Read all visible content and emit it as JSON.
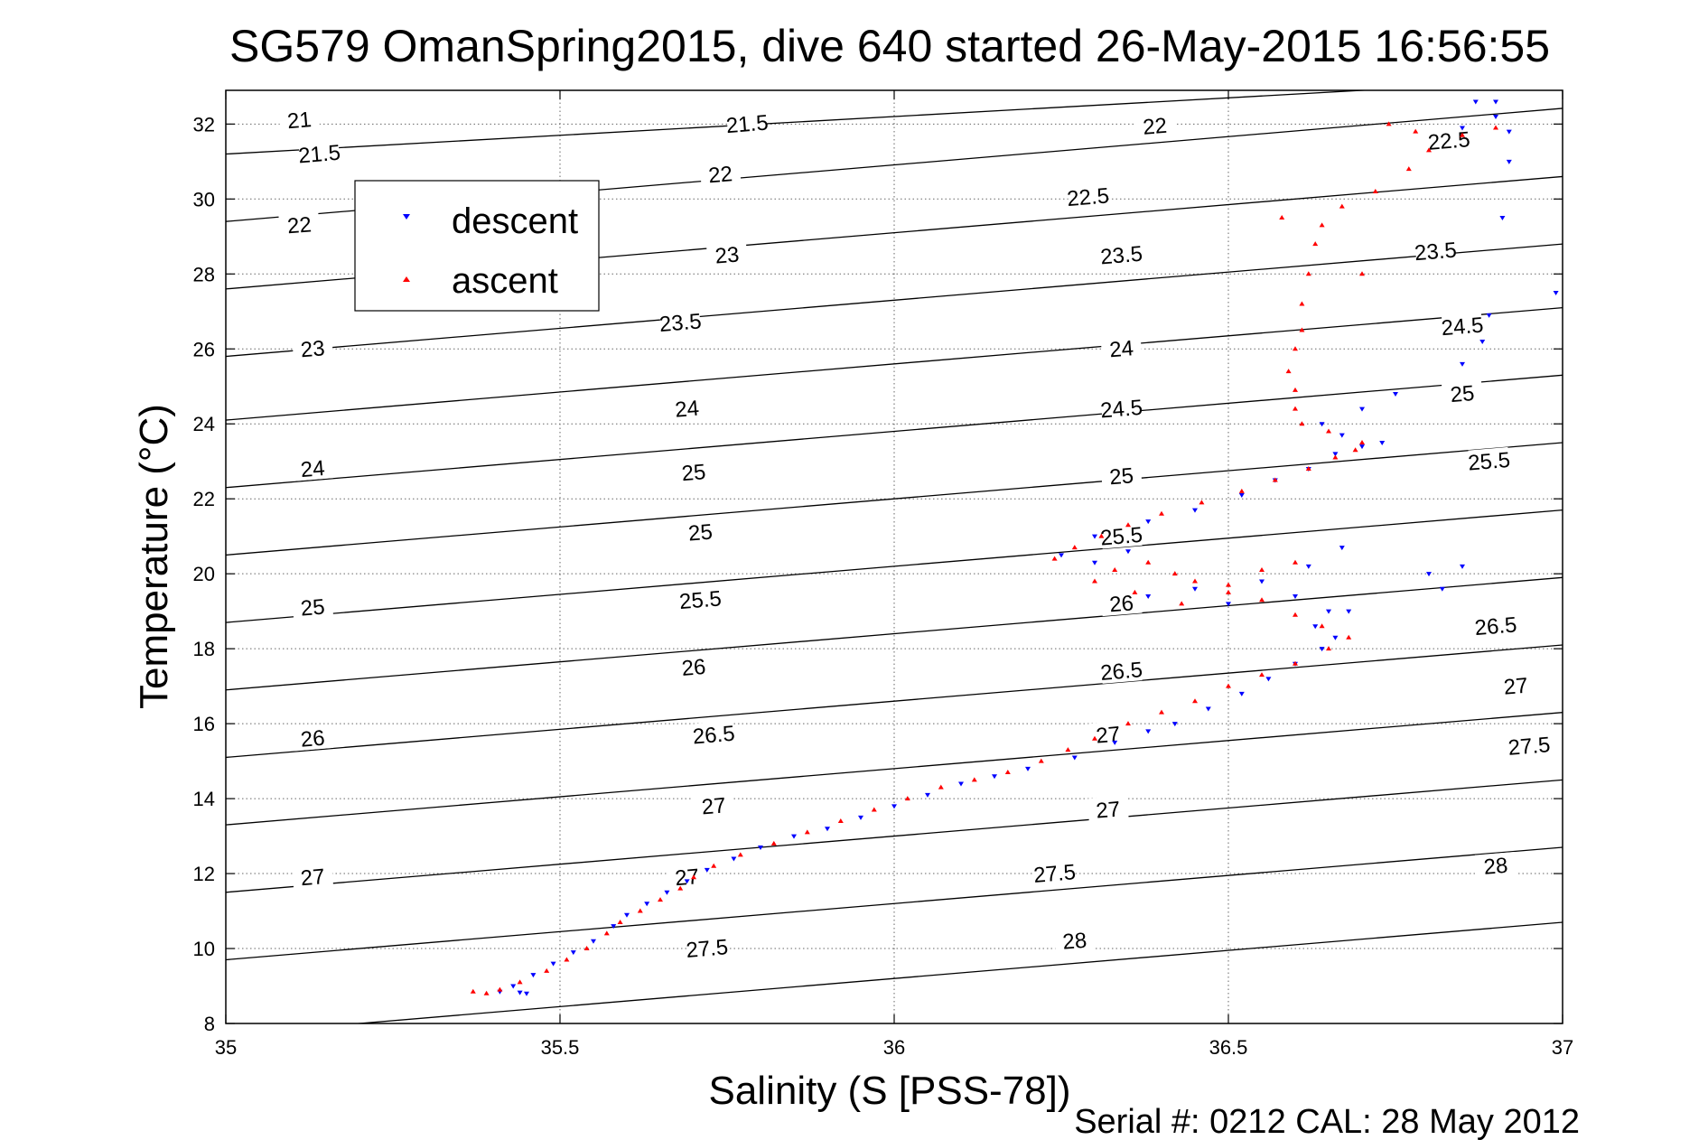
{
  "chart_data": {
    "type": "scatter",
    "title": "SG579 OmanSpring2015, dive 640 started 26-May-2015 16:56:55",
    "xlabel": "Salinity (S [PSS-78])",
    "ylabel": "Temperature (°C)",
    "xlim": [
      35,
      37
    ],
    "ylim": [
      8,
      32.9
    ],
    "xticks": [
      35,
      35.5,
      36,
      36.5,
      37
    ],
    "xtick_labels": [
      "35",
      "35.5",
      "36",
      "36.5",
      "37"
    ],
    "yticks": [
      8,
      10,
      12,
      14,
      16,
      18,
      20,
      22,
      24,
      26,
      28,
      30,
      32
    ],
    "ytick_labels": [
      "8",
      "10",
      "12",
      "14",
      "16",
      "18",
      "20",
      "22",
      "24",
      "26",
      "28",
      "30",
      "32"
    ],
    "grid": "dotted",
    "legend_position": "upper-left",
    "contour_labels": [
      "21",
      "21.5",
      "22",
      "22.5",
      "23",
      "23.5",
      "24",
      "24.5",
      "25",
      "25.5",
      "26",
      "26.5",
      "27",
      "27.5",
      "28"
    ],
    "series": [
      {
        "name": "descent",
        "color": "#0000ff",
        "marker": "down-triangle",
        "points": [
          [
            35.41,
            8.85
          ],
          [
            35.44,
            8.83
          ],
          [
            35.45,
            8.8
          ],
          [
            35.43,
            9.0
          ],
          [
            35.46,
            9.3
          ],
          [
            35.49,
            9.6
          ],
          [
            35.52,
            9.9
          ],
          [
            35.55,
            10.2
          ],
          [
            35.58,
            10.6
          ],
          [
            35.6,
            10.9
          ],
          [
            35.63,
            11.2
          ],
          [
            35.66,
            11.5
          ],
          [
            35.69,
            11.8
          ],
          [
            35.72,
            12.1
          ],
          [
            35.76,
            12.4
          ],
          [
            35.8,
            12.7
          ],
          [
            35.85,
            13.0
          ],
          [
            35.9,
            13.2
          ],
          [
            35.95,
            13.5
          ],
          [
            36.0,
            13.8
          ],
          [
            36.05,
            14.1
          ],
          [
            36.1,
            14.4
          ],
          [
            36.15,
            14.6
          ],
          [
            36.2,
            14.8
          ],
          [
            36.27,
            15.1
          ],
          [
            36.33,
            15.5
          ],
          [
            36.38,
            15.8
          ],
          [
            36.42,
            16.0
          ],
          [
            36.47,
            16.4
          ],
          [
            36.52,
            16.8
          ],
          [
            36.56,
            17.2
          ],
          [
            36.6,
            17.6
          ],
          [
            36.64,
            18.0
          ],
          [
            36.66,
            18.3
          ],
          [
            36.63,
            18.6
          ],
          [
            36.65,
            19.0
          ],
          [
            36.6,
            19.4
          ],
          [
            36.55,
            19.8
          ],
          [
            36.62,
            20.2
          ],
          [
            36.67,
            20.7
          ],
          [
            36.45,
            19.6
          ],
          [
            36.5,
            19.2
          ],
          [
            36.38,
            19.4
          ],
          [
            36.3,
            20.3
          ],
          [
            36.35,
            20.6
          ],
          [
            36.25,
            20.5
          ],
          [
            36.3,
            21.0
          ],
          [
            36.38,
            21.4
          ],
          [
            36.45,
            21.7
          ],
          [
            36.52,
            22.1
          ],
          [
            36.57,
            22.5
          ],
          [
            36.62,
            22.8
          ],
          [
            36.66,
            23.2
          ],
          [
            36.7,
            23.4
          ],
          [
            36.73,
            23.5
          ],
          [
            36.67,
            23.7
          ],
          [
            36.64,
            24.0
          ],
          [
            36.7,
            24.4
          ],
          [
            36.75,
            24.8
          ],
          [
            36.85,
            25.6
          ],
          [
            36.88,
            26.2
          ],
          [
            36.89,
            26.9
          ],
          [
            36.91,
            29.5
          ],
          [
            36.99,
            27.5
          ],
          [
            36.92,
            31.8
          ],
          [
            36.9,
            32.2
          ],
          [
            36.87,
            32.6
          ],
          [
            36.9,
            32.6
          ],
          [
            36.92,
            31.0
          ],
          [
            36.85,
            31.9
          ],
          [
            36.8,
            20.0
          ],
          [
            36.85,
            20.2
          ],
          [
            36.82,
            19.6
          ],
          [
            36.68,
            19.0
          ]
        ]
      },
      {
        "name": "ascent",
        "color": "#ff0000",
        "marker": "up-triangle",
        "points": [
          [
            35.37,
            8.85
          ],
          [
            35.39,
            8.8
          ],
          [
            35.41,
            8.9
          ],
          [
            35.44,
            9.1
          ],
          [
            35.48,
            9.4
          ],
          [
            35.51,
            9.7
          ],
          [
            35.54,
            10.0
          ],
          [
            35.57,
            10.4
          ],
          [
            35.59,
            10.7
          ],
          [
            35.62,
            11.0
          ],
          [
            35.65,
            11.3
          ],
          [
            35.68,
            11.6
          ],
          [
            35.7,
            11.9
          ],
          [
            35.73,
            12.2
          ],
          [
            35.77,
            12.5
          ],
          [
            35.82,
            12.8
          ],
          [
            35.87,
            13.1
          ],
          [
            35.92,
            13.4
          ],
          [
            35.97,
            13.7
          ],
          [
            36.02,
            14.0
          ],
          [
            36.07,
            14.3
          ],
          [
            36.12,
            14.5
          ],
          [
            36.17,
            14.7
          ],
          [
            36.22,
            15.0
          ],
          [
            36.26,
            15.3
          ],
          [
            36.3,
            15.6
          ],
          [
            36.35,
            16.0
          ],
          [
            36.4,
            16.3
          ],
          [
            36.45,
            16.6
          ],
          [
            36.5,
            17.0
          ],
          [
            36.55,
            17.3
          ],
          [
            36.6,
            17.6
          ],
          [
            36.65,
            18.0
          ],
          [
            36.68,
            18.3
          ],
          [
            36.64,
            18.6
          ],
          [
            36.6,
            18.9
          ],
          [
            36.55,
            19.3
          ],
          [
            36.5,
            19.5
          ],
          [
            36.45,
            19.8
          ],
          [
            36.42,
            20.0
          ],
          [
            36.38,
            20.3
          ],
          [
            36.33,
            20.1
          ],
          [
            36.3,
            19.8
          ],
          [
            36.36,
            19.5
          ],
          [
            36.43,
            19.2
          ],
          [
            36.5,
            19.7
          ],
          [
            36.55,
            20.1
          ],
          [
            36.6,
            20.3
          ],
          [
            36.24,
            20.4
          ],
          [
            36.27,
            20.7
          ],
          [
            36.31,
            21.0
          ],
          [
            36.35,
            21.3
          ],
          [
            36.4,
            21.6
          ],
          [
            36.46,
            21.9
          ],
          [
            36.52,
            22.2
          ],
          [
            36.57,
            22.5
          ],
          [
            36.62,
            22.8
          ],
          [
            36.66,
            23.1
          ],
          [
            36.69,
            23.3
          ],
          [
            36.7,
            23.5
          ],
          [
            36.65,
            23.8
          ],
          [
            36.61,
            24.0
          ],
          [
            36.6,
            24.4
          ],
          [
            36.6,
            24.9
          ],
          [
            36.59,
            25.4
          ],
          [
            36.6,
            26.0
          ],
          [
            36.61,
            26.5
          ],
          [
            36.61,
            27.2
          ],
          [
            36.62,
            28.0
          ],
          [
            36.63,
            28.8
          ],
          [
            36.64,
            29.3
          ],
          [
            36.67,
            29.8
          ],
          [
            36.72,
            30.2
          ],
          [
            36.77,
            30.8
          ],
          [
            36.8,
            31.3
          ],
          [
            36.78,
            31.8
          ],
          [
            36.74,
            32.0
          ],
          [
            36.85,
            31.7
          ],
          [
            36.9,
            31.9
          ],
          [
            36.58,
            29.5
          ],
          [
            36.7,
            28.0
          ]
        ]
      }
    ]
  },
  "legend": {
    "descent_label": "descent",
    "ascent_label": "ascent"
  },
  "footer": {
    "serial_text": "Serial #: 0212  CAL: 28 May 2012"
  }
}
